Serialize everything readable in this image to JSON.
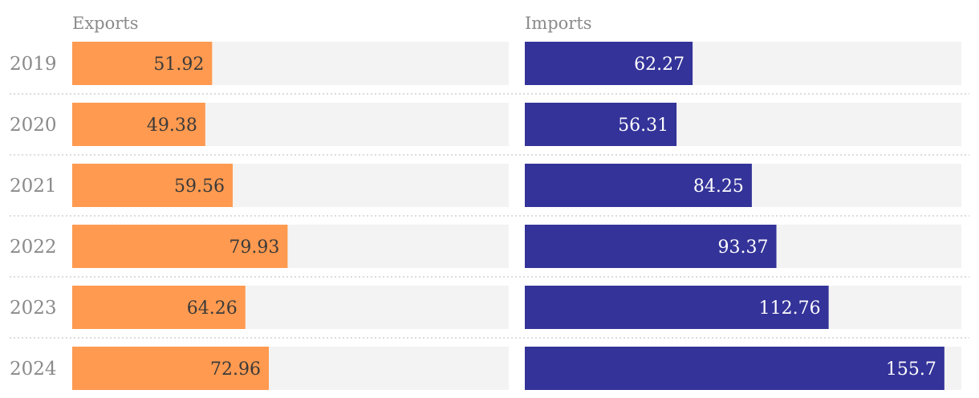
{
  "chart_data": [
    {
      "type": "bar",
      "title": "Exports",
      "categories": [
        "2019",
        "2020",
        "2021",
        "2022",
        "2023",
        "2024"
      ],
      "values": [
        51.92,
        49.38,
        59.56,
        79.93,
        64.26,
        72.96
      ],
      "color": "#FF9A50",
      "label_color": "#3a3a3a",
      "track_color": "#F3F3F3",
      "xlim": [
        0,
        162
      ]
    },
    {
      "type": "bar",
      "title": "Imports",
      "categories": [
        "2019",
        "2020",
        "2021",
        "2022",
        "2023",
        "2024"
      ],
      "values": [
        62.27,
        56.31,
        84.25,
        93.37,
        112.76,
        155.7
      ],
      "color": "#343399",
      "label_color": "#ffffff",
      "track_color": "#F3F3F3",
      "xlim": [
        0,
        162
      ]
    }
  ]
}
